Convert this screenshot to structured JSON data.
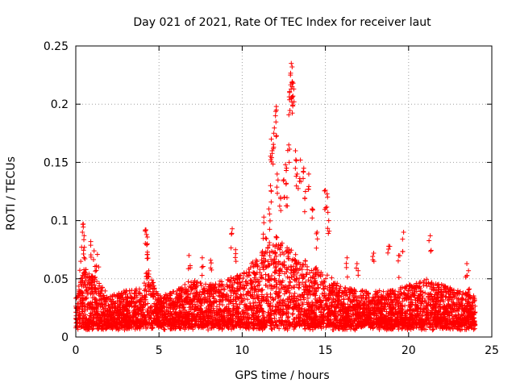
{
  "chart_data": {
    "type": "scatter",
    "title": "Day 021 of 2021, Rate Of TEC Index for receiver laut",
    "xlabel": "GPS time / hours",
    "ylabel": "ROTI / TECUs",
    "xlim": [
      0,
      25
    ],
    "ylim": [
      0,
      0.25
    ],
    "xticks": [
      0,
      5,
      10,
      15,
      20,
      25
    ],
    "yticks": [
      0,
      0.05,
      0.1,
      0.15,
      0.2,
      0.25
    ],
    "x_tick_labels": [
      "0",
      "5",
      "10",
      "15",
      "20",
      "25"
    ],
    "y_tick_labels": [
      "0",
      "0.05",
      "0.1",
      "0.15",
      "0.2",
      "0.25"
    ],
    "grid": true,
    "marker": "+",
    "series_color": "#ff0000",
    "data_x_range_hours": [
      0,
      24
    ],
    "envelope": [
      [
        0.0,
        0.035
      ],
      [
        0.5,
        0.06
      ],
      [
        1.0,
        0.055
      ],
      [
        1.5,
        0.045
      ],
      [
        2.0,
        0.035
      ],
      [
        3.0,
        0.04
      ],
      [
        4.0,
        0.045
      ],
      [
        4.3,
        0.06
      ],
      [
        5.0,
        0.035
      ],
      [
        6.0,
        0.04
      ],
      [
        7.0,
        0.05
      ],
      [
        8.0,
        0.045
      ],
      [
        9.0,
        0.05
      ],
      [
        10.0,
        0.055
      ],
      [
        11.0,
        0.07
      ],
      [
        12.0,
        0.09
      ],
      [
        12.5,
        0.08
      ],
      [
        13.0,
        0.075
      ],
      [
        14.0,
        0.065
      ],
      [
        15.0,
        0.055
      ],
      [
        16.0,
        0.045
      ],
      [
        17.0,
        0.04
      ],
      [
        18.0,
        0.04
      ],
      [
        19.0,
        0.04
      ],
      [
        20.0,
        0.045
      ],
      [
        21.0,
        0.05
      ],
      [
        22.0,
        0.045
      ],
      [
        23.0,
        0.04
      ],
      [
        24.0,
        0.035
      ]
    ],
    "outliers": [
      [
        0.3,
        0.065
      ],
      [
        0.4,
        0.09
      ],
      [
        0.45,
        0.097
      ],
      [
        0.5,
        0.087
      ],
      [
        0.9,
        0.082
      ],
      [
        1.1,
        0.074
      ],
      [
        1.3,
        0.071
      ],
      [
        4.2,
        0.092
      ],
      [
        4.25,
        0.088
      ],
      [
        4.3,
        0.08
      ],
      [
        4.3,
        0.071
      ],
      [
        6.8,
        0.07
      ],
      [
        7.6,
        0.068
      ],
      [
        8.1,
        0.066
      ],
      [
        9.4,
        0.093
      ],
      [
        9.6,
        0.075
      ],
      [
        11.3,
        0.103
      ],
      [
        11.4,
        0.085
      ],
      [
        11.6,
        0.11
      ],
      [
        11.7,
        0.13
      ],
      [
        11.75,
        0.17
      ],
      [
        11.8,
        0.16
      ],
      [
        11.9,
        0.175
      ],
      [
        12.0,
        0.19
      ],
      [
        12.05,
        0.198
      ],
      [
        12.1,
        0.14
      ],
      [
        12.3,
        0.12
      ],
      [
        12.5,
        0.135
      ],
      [
        12.6,
        0.148
      ],
      [
        12.65,
        0.132
      ],
      [
        12.8,
        0.165
      ],
      [
        12.85,
        0.21
      ],
      [
        12.9,
        0.225
      ],
      [
        12.95,
        0.235
      ],
      [
        13.0,
        0.232
      ],
      [
        13.0,
        0.215
      ],
      [
        13.05,
        0.207
      ],
      [
        13.1,
        0.213
      ],
      [
        13.2,
        0.16
      ],
      [
        13.3,
        0.14
      ],
      [
        13.5,
        0.152
      ],
      [
        13.7,
        0.145
      ],
      [
        13.8,
        0.125
      ],
      [
        14.0,
        0.14
      ],
      [
        14.2,
        0.11
      ],
      [
        14.5,
        0.09
      ],
      [
        15.0,
        0.126
      ],
      [
        15.1,
        0.123
      ],
      [
        15.2,
        0.1
      ],
      [
        16.3,
        0.068
      ],
      [
        16.9,
        0.063
      ],
      [
        17.9,
        0.072
      ],
      [
        18.8,
        0.078
      ],
      [
        19.4,
        0.07
      ],
      [
        19.7,
        0.09
      ],
      [
        21.3,
        0.087
      ],
      [
        23.5,
        0.063
      ],
      [
        23.6,
        0.057
      ]
    ]
  }
}
